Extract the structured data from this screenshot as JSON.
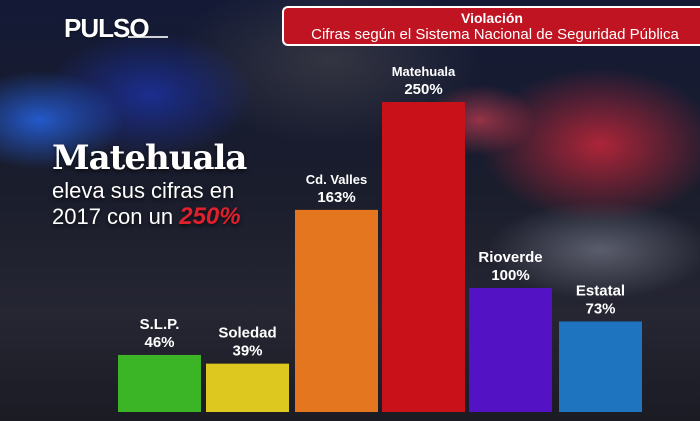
{
  "brand": {
    "logo": "PULSO"
  },
  "banner": {
    "title": "Violación",
    "subtitle": "Cifras según el Sistema Nacional de Seguridad Pública"
  },
  "headline": {
    "main": "Matehuala",
    "line1": "eleva sus cifras en",
    "line2_prefix": "2017 con un ",
    "line2_highlight": "250%"
  },
  "chart_data": {
    "type": "bar",
    "title": "Violación",
    "categories": [
      "S.L.P.",
      "Soledad",
      "Cd. Valles",
      "Matehuala",
      "Rioverde",
      "Estatal"
    ],
    "values": [
      46,
      39,
      163,
      250,
      100,
      73
    ],
    "value_labels": [
      "46%",
      "39%",
      "163%",
      "250%",
      "100%",
      "73%"
    ],
    "colors": [
      "#3bb525",
      "#dcc81f",
      "#e3761f",
      "#c81119",
      "#5313c4",
      "#1f74c0"
    ],
    "ylim": [
      0,
      250
    ],
    "grid": false,
    "legend": false
  }
}
